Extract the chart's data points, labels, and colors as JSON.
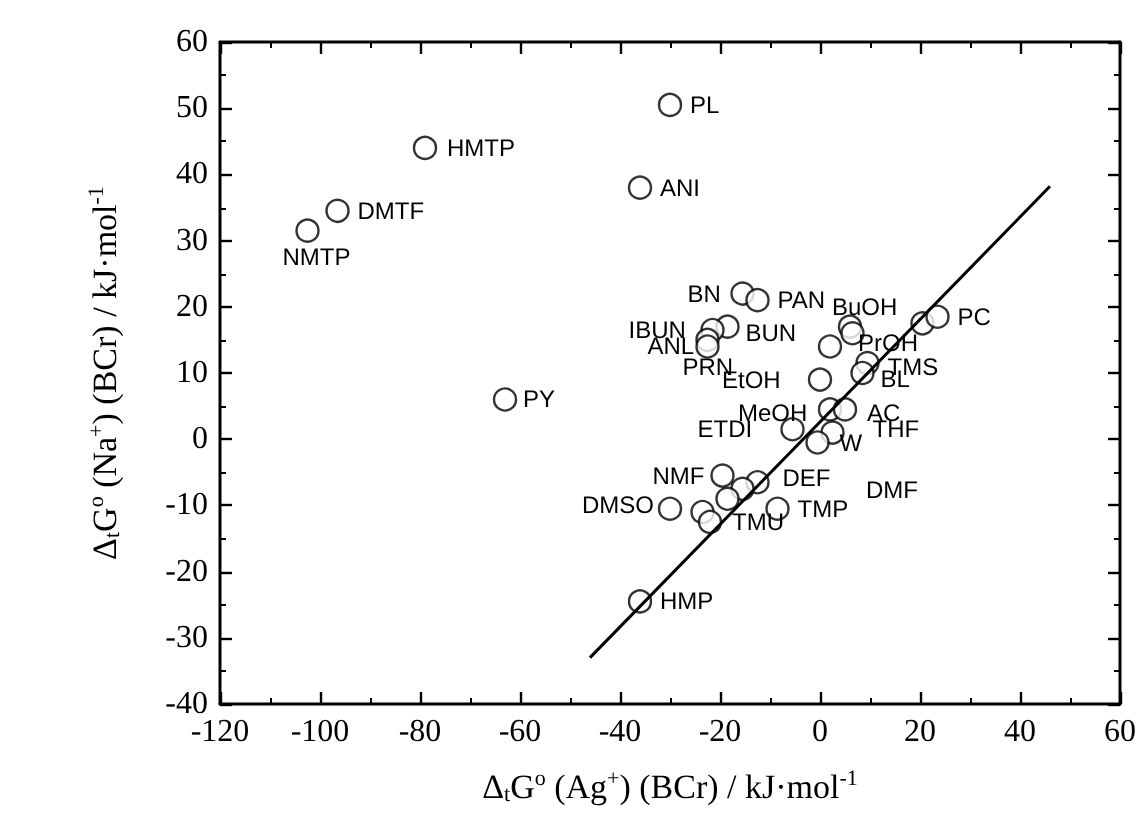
{
  "chart_data": {
    "type": "scatter",
    "xlabel": "Δ$_{t}$G$^{o}$ (Ag$^{+}$) (BCr) / kJ·mol$^{-1}$",
    "ylabel": "Δ$_{t}$G$^{o}$ (Na$^{+}$) (BCr) / kJ·mol$^{-1}$",
    "xlim": [
      -120,
      60
    ],
    "xticks": [
      -120,
      -100,
      -80,
      -60,
      -40,
      -20,
      0,
      20,
      40,
      60
    ],
    "ylim": [
      -40,
      60
    ],
    "yticks": [
      -40,
      -30,
      -20,
      -10,
      0,
      10,
      20,
      30,
      40,
      50,
      60
    ],
    "grid": false,
    "marker": "circle",
    "series": [
      {
        "color": "#000000",
        "x": [
          -102.5,
          -96.5,
          -79,
          -63,
          -30,
          -36,
          -15.5,
          -12.5,
          -18.5,
          -21.5,
          -22.5,
          -22.5,
          0,
          6,
          6.5,
          2,
          20.5,
          23.5,
          9.5,
          8.5,
          2,
          5,
          -5.5,
          2.5,
          -0.5,
          -19.5,
          -12.5,
          -15.5,
          -18.5,
          -30,
          -23.5,
          -22,
          -8.5,
          -36
        ],
        "values": [
          31.5,
          34.5,
          44,
          6,
          50.5,
          38,
          22,
          21,
          17,
          16.5,
          15,
          14,
          9,
          17,
          16,
          14,
          17.5,
          18.5,
          11.5,
          10,
          4.5,
          4.5,
          1.5,
          1,
          -0.5,
          -5.5,
          -6.5,
          -7.5,
          -9,
          -10.5,
          -11,
          -12.5,
          -10.5,
          -24.5
        ]
      },
      {
        "type": "line",
        "color": "#000000",
        "marker": "none",
        "x": [
          -46,
          46
        ],
        "values": [
          -33,
          38.2
        ]
      }
    ],
    "annotations": [
      {
        "text": "NMTP",
        "x": -102.5,
        "y": 31.5
      },
      {
        "text": "DMTF",
        "x": -96.5,
        "y": 34.5
      },
      {
        "text": "HMTP",
        "x": -79,
        "y": 44
      },
      {
        "text": "PY",
        "x": -63,
        "y": 6
      },
      {
        "text": "PL",
        "x": -30,
        "y": 50.5
      },
      {
        "text": "ANI",
        "x": -36,
        "y": 38
      },
      {
        "text": "BN",
        "x": -15.5,
        "y": 22
      },
      {
        "text": "PAN",
        "x": -12.5,
        "y": 21
      },
      {
        "text": "IBUN",
        "x": -21.5,
        "y": 16.5
      },
      {
        "text": "BUN",
        "x": -18.5,
        "y": 17
      },
      {
        "text": "ANL",
        "x": -22.5,
        "y": 15
      },
      {
        "text": "PRN",
        "x": -22.5,
        "y": 14
      },
      {
        "text": "EtOH",
        "x": 0,
        "y": 9
      },
      {
        "text": "BuOH",
        "x": 6,
        "y": 17
      },
      {
        "text": "PrOH",
        "x": 2,
        "y": 14
      },
      {
        "text": "PC",
        "x": 23.5,
        "y": 18.5
      },
      {
        "text": "TMS",
        "x": 9.5,
        "y": 11.5
      },
      {
        "text": "BL",
        "x": 8.5,
        "y": 10
      },
      {
        "text": "MeOH",
        "x": 2,
        "y": 4.5
      },
      {
        "text": "AC",
        "x": 5,
        "y": 4.5
      },
      {
        "text": "ETDI",
        "x": -5.5,
        "y": 1.5
      },
      {
        "text": "THF",
        "x": 2.5,
        "y": 1
      },
      {
        "text": "W",
        "x": -0.5,
        "y": -0.5
      },
      {
        "text": "NMF",
        "x": -19.5,
        "y": -5.5
      },
      {
        "text": "DEF",
        "x": -12.5,
        "y": -6.5
      },
      "DMF",
      {
        "text": "TMP",
        "x": -8.5,
        "y": -10.5
      },
      {
        "text": "TMU",
        "x": -22,
        "y": -12.5
      },
      {
        "text": "DMSO",
        "x": -30,
        "y": -10.5
      },
      {
        "text": "HMP",
        "x": -36,
        "y": -24.5
      }
    ]
  }
}
